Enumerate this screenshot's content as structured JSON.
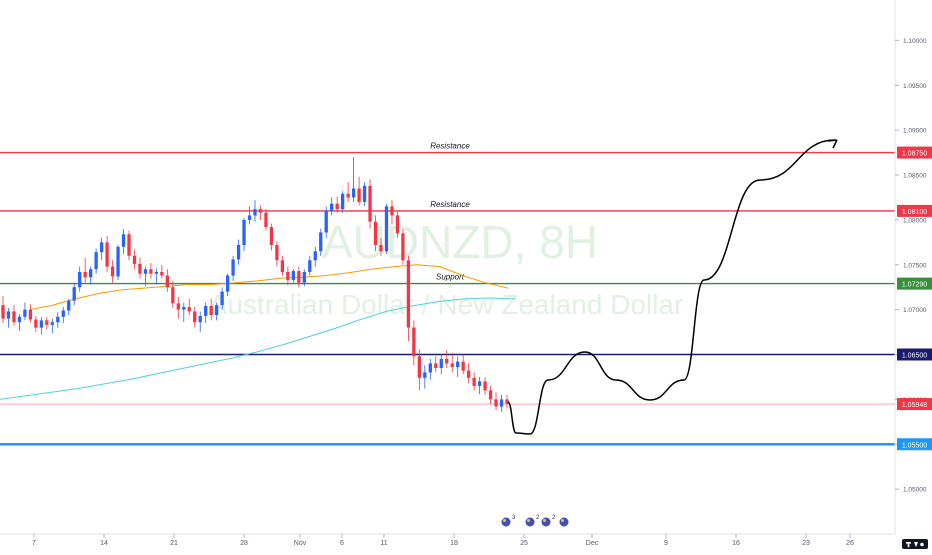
{
  "chart_data": {
    "type": "candlestick",
    "watermark": {
      "symbol": "AUDNZD, 8H",
      "name": "Australian Dollar / New Zealand Dollar"
    },
    "y_axis": {
      "ylim": [
        1.045,
        1.1045
      ],
      "ticks": [
        {
          "value": 1.1,
          "label": "1.10000"
        },
        {
          "value": 1.095,
          "label": "1.09500"
        },
        {
          "value": 1.09,
          "label": "1.09000"
        },
        {
          "value": 1.085,
          "label": "1.08500"
        },
        {
          "value": 1.08,
          "label": "1.08000"
        },
        {
          "value": 1.075,
          "label": "1.07500"
        },
        {
          "value": 1.07,
          "label": "1.07000"
        },
        {
          "value": 1.065,
          "label": "1.06500"
        },
        {
          "value": 1.06,
          "label": "1.06000"
        },
        {
          "value": 1.055,
          "label": "1.05500"
        },
        {
          "value": 1.05,
          "label": "1.05000"
        }
      ]
    },
    "x_axis": {
      "ticks": [
        "7",
        "14",
        "21",
        "28",
        "Nov",
        "6",
        "11",
        "18",
        "25",
        "Dec",
        "9",
        "16",
        "23",
        "26"
      ]
    },
    "levels": [
      {
        "value": 1.0875,
        "label": "1.08750",
        "color": "#f23645",
        "annotation": "Resistance"
      },
      {
        "value": 1.081,
        "label": "1.08100",
        "color": "#f23645",
        "annotation": "Resistance"
      },
      {
        "value": 1.0729,
        "label": "1.07290",
        "color": "#388e3c",
        "annotation": "Support"
      },
      {
        "value": 1.065,
        "label": "1.06500",
        "color": "#1a1a6e",
        "annotation": ""
      },
      {
        "value": 1.05948,
        "label": "1.05948",
        "color": "#f23645",
        "annotation": "",
        "style": "price"
      },
      {
        "value": 1.055,
        "label": "1.05500",
        "color": "#2196f3",
        "annotation": ""
      }
    ],
    "candles": [
      [
        1.0705,
        1.0715,
        1.0685,
        1.069
      ],
      [
        1.069,
        1.0702,
        1.068,
        1.0698
      ],
      [
        1.0698,
        1.0705,
        1.0682,
        1.0686
      ],
      [
        1.0686,
        1.0695,
        1.0676,
        1.0692
      ],
      [
        1.0692,
        1.0708,
        1.0688,
        1.07
      ],
      [
        1.07,
        1.0706,
        1.0686,
        1.0689
      ],
      [
        1.0689,
        1.0693,
        1.0675,
        1.068
      ],
      [
        1.068,
        1.0692,
        1.0672,
        1.0688
      ],
      [
        1.0688,
        1.0692,
        1.0678,
        1.0683
      ],
      [
        1.0683,
        1.069,
        1.0674,
        1.0686
      ],
      [
        1.0686,
        1.0697,
        1.068,
        1.0692
      ],
      [
        1.0692,
        1.0703,
        1.0685,
        1.0699
      ],
      [
        1.0699,
        1.0712,
        1.0694,
        1.071
      ],
      [
        1.071,
        1.073,
        1.0705,
        1.0725
      ],
      [
        1.0725,
        1.0748,
        1.072,
        1.0742
      ],
      [
        1.0742,
        1.0758,
        1.073,
        1.0736
      ],
      [
        1.0736,
        1.0748,
        1.0728,
        1.0745
      ],
      [
        1.0745,
        1.0768,
        1.074,
        1.0764
      ],
      [
        1.0764,
        1.078,
        1.0755,
        1.0775
      ],
      [
        1.0775,
        1.0782,
        1.0742,
        1.0748
      ],
      [
        1.0748,
        1.0755,
        1.073,
        1.0737
      ],
      [
        1.0737,
        1.0772,
        1.0733,
        1.077
      ],
      [
        1.077,
        1.079,
        1.0762,
        1.0784
      ],
      [
        1.0784,
        1.0788,
        1.0755,
        1.076
      ],
      [
        1.076,
        1.0767,
        1.0745,
        1.0751
      ],
      [
        1.0751,
        1.0758,
        1.0735,
        1.074
      ],
      [
        1.074,
        1.0748,
        1.0726,
        1.0745
      ],
      [
        1.0745,
        1.0752,
        1.0735,
        1.074
      ],
      [
        1.074,
        1.0746,
        1.0728,
        1.0742
      ],
      [
        1.0742,
        1.075,
        1.0735,
        1.0738
      ],
      [
        1.0738,
        1.0745,
        1.072,
        1.0725
      ],
      [
        1.0725,
        1.0732,
        1.0702,
        1.0707
      ],
      [
        1.0707,
        1.0714,
        1.069,
        1.07
      ],
      [
        1.07,
        1.0708,
        1.0686,
        1.0703
      ],
      [
        1.0703,
        1.0712,
        1.0694,
        1.0698
      ],
      [
        1.0698,
        1.0703,
        1.068,
        1.0686
      ],
      [
        1.0686,
        1.0698,
        1.0675,
        1.0693
      ],
      [
        1.0693,
        1.0708,
        1.0685,
        1.0704
      ],
      [
        1.0704,
        1.0712,
        1.0688,
        1.0694
      ],
      [
        1.0694,
        1.0708,
        1.0688,
        1.0705
      ],
      [
        1.0705,
        1.0725,
        1.07,
        1.072
      ],
      [
        1.072,
        1.074,
        1.0715,
        1.0738
      ],
      [
        1.0738,
        1.076,
        1.0732,
        1.0756
      ],
      [
        1.0756,
        1.0778,
        1.075,
        1.0772
      ],
      [
        1.0772,
        1.0802,
        1.0765,
        1.08
      ],
      [
        1.08,
        1.0815,
        1.0795,
        1.0805
      ],
      [
        1.0805,
        1.0822,
        1.0798,
        1.0812
      ],
      [
        1.0812,
        1.0816,
        1.08,
        1.0808
      ],
      [
        1.0808,
        1.0812,
        1.0788,
        1.0792
      ],
      [
        1.0792,
        1.0796,
        1.0766,
        1.0772
      ],
      [
        1.0772,
        1.0776,
        1.0748,
        1.0755
      ],
      [
        1.0755,
        1.076,
        1.0738,
        1.0742
      ],
      [
        1.0742,
        1.0748,
        1.0727,
        1.0733
      ],
      [
        1.0733,
        1.0745,
        1.0729,
        1.0743
      ],
      [
        1.0743,
        1.0748,
        1.0725,
        1.073
      ],
      [
        1.073,
        1.0745,
        1.0726,
        1.0742
      ],
      [
        1.0742,
        1.076,
        1.0738,
        1.0755
      ],
      [
        1.0755,
        1.077,
        1.0748,
        1.0765
      ],
      [
        1.0765,
        1.079,
        1.076,
        1.0786
      ],
      [
        1.0786,
        1.0815,
        1.078,
        1.081
      ],
      [
        1.081,
        1.0825,
        1.0805,
        1.0818
      ],
      [
        1.0818,
        1.0826,
        1.0808,
        1.0812
      ],
      [
        1.0812,
        1.0832,
        1.0808,
        1.0829
      ],
      [
        1.0829,
        1.0842,
        1.082,
        1.0825
      ],
      [
        1.0825,
        1.087,
        1.082,
        1.0835
      ],
      [
        1.0835,
        1.0848,
        1.0816,
        1.082
      ],
      [
        1.082,
        1.0842,
        1.0815,
        1.0838
      ],
      [
        1.0838,
        1.0845,
        1.079,
        1.0798
      ],
      [
        1.0798,
        1.0805,
        1.0765,
        1.0772
      ],
      [
        1.0772,
        1.078,
        1.076,
        1.0765
      ],
      [
        1.0765,
        1.0818,
        1.0762,
        1.0815
      ],
      [
        1.0815,
        1.0822,
        1.0795,
        1.0805
      ],
      [
        1.0805,
        1.081,
        1.078,
        1.0785
      ],
      [
        1.0785,
        1.079,
        1.075,
        1.0755
      ],
      [
        1.0755,
        1.076,
        1.0665,
        1.068
      ],
      [
        1.068,
        1.0688,
        1.0638,
        1.0648
      ],
      [
        1.0648,
        1.0656,
        1.061,
        1.0624
      ],
      [
        1.0624,
        1.0638,
        1.0612,
        1.063
      ],
      [
        1.063,
        1.0645,
        1.0622,
        1.064
      ],
      [
        1.064,
        1.0648,
        1.063,
        1.0635
      ],
      [
        1.0635,
        1.065,
        1.0628,
        1.0645
      ],
      [
        1.0645,
        1.0655,
        1.0635,
        1.064
      ],
      [
        1.064,
        1.0652,
        1.063,
        1.0636
      ],
      [
        1.0636,
        1.0648,
        1.0625,
        1.0642
      ],
      [
        1.0642,
        1.065,
        1.0628,
        1.0632
      ],
      [
        1.0632,
        1.064,
        1.0618,
        1.0624
      ],
      [
        1.0624,
        1.063,
        1.061,
        1.0615
      ],
      [
        1.0615,
        1.0625,
        1.0606,
        1.062
      ],
      [
        1.062,
        1.0625,
        1.0605,
        1.061
      ],
      [
        1.061,
        1.0615,
        1.0595,
        1.06
      ],
      [
        1.06,
        1.0608,
        1.0588,
        1.0592
      ],
      [
        1.0592,
        1.0605,
        1.0586,
        1.06
      ],
      [
        1.06,
        1.0605,
        1.059,
        1.0595
      ]
    ],
    "ema_orange": [
      1.07,
      1.0705,
      1.0712,
      1.0718,
      1.0722,
      1.0724,
      1.0726,
      1.0728,
      1.0728,
      1.073,
      1.0732,
      1.0735,
      1.0736,
      1.0738,
      1.0741,
      1.0745,
      1.0748,
      1.075,
      1.0748,
      1.0738,
      1.073,
      1.0724
    ],
    "ema_cyan": [
      1.06,
      1.0604,
      1.0608,
      1.0612,
      1.0617,
      1.0622,
      1.0628,
      1.0634,
      1.064,
      1.0646,
      1.0653,
      1.0661,
      1.067,
      1.0679,
      1.0689,
      1.0698,
      1.0704,
      1.0709,
      1.0712,
      1.0713,
      1.0712
    ],
    "colors": {
      "up": "#2962ff",
      "down": "#f23645",
      "ema_orange": "#ff9800",
      "ema_cyan": "#4dd0e1",
      "projection": "#000000"
    },
    "projection": "price dips toward 1.0575, rebounds to near 1.0650, consolidates, then rallies to about 1.0870"
  }
}
